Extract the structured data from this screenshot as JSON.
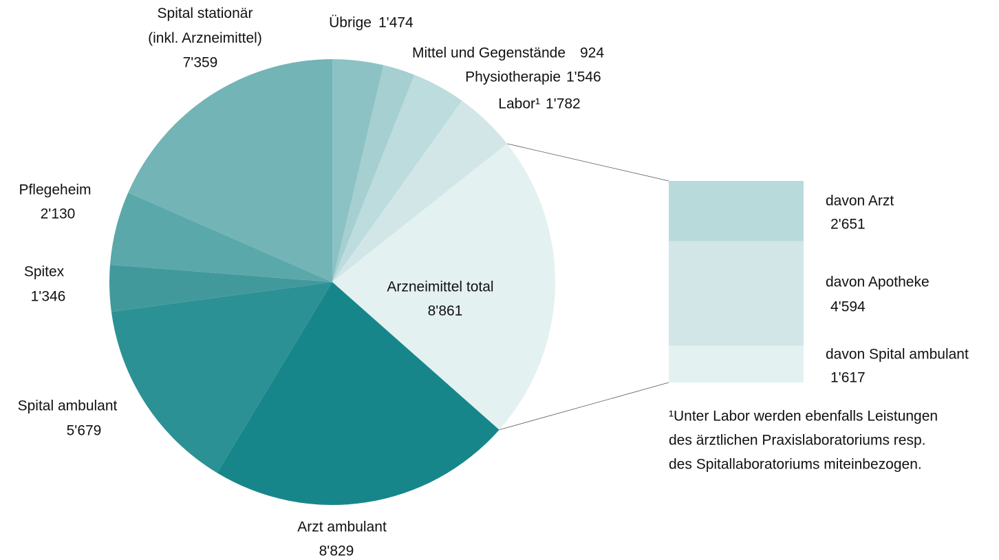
{
  "chart_data": {
    "type": "pie",
    "categories": [
      "Übrige",
      "Mittel und Gegenstände",
      "Physiotherapie",
      "Labor¹",
      "Arzneimittel total",
      "Arzt ambulant",
      "Spital ambulant",
      "Spitex",
      "Pflegeheim",
      "Spital stationär\n(inkl. Arzneimittel)"
    ],
    "values": [
      1474,
      924,
      1546,
      1782,
      8861,
      8829,
      5679,
      1346,
      2130,
      7359
    ],
    "value_labels": [
      "1'474",
      "924",
      "1'546",
      "1'782",
      "8'861",
      "8'829",
      "5'679",
      "1'346",
      "2'130",
      "7'359"
    ],
    "colors": [
      "#8dc2c4",
      "#a6cfd1",
      "#bcdcdd",
      "#d2e6e7",
      "#e4f1f1",
      "#17868b",
      "#2b9194",
      "#42999c",
      "#5aa8aa",
      "#73b4b6"
    ],
    "breakdown": {
      "type": "bar",
      "categories": [
        "davon Arzt",
        "davon Apotheke",
        "davon Spital ambulant"
      ],
      "values": [
        2651,
        4594,
        1617
      ],
      "value_labels": [
        "2'651",
        "4'594",
        "1'617"
      ],
      "colors": [
        "#b8dadb",
        "#d2e6e7",
        "#e4f1f1"
      ]
    },
    "annotations": [
      "¹Unter Labor werden ebenfalls Leistungen",
      "des ärztlichen Praxislaboratoriums resp.",
      "des Spitallaboratoriums miteinbezogen."
    ]
  }
}
